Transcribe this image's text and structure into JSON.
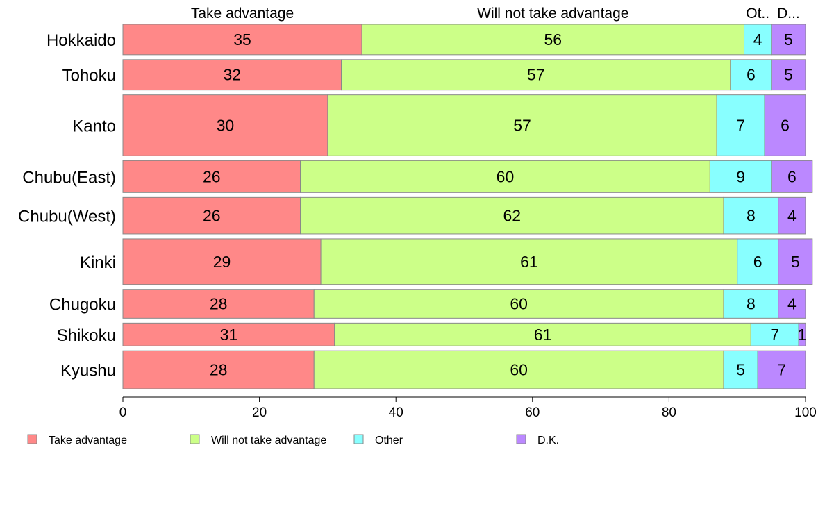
{
  "chart_data": {
    "type": "bar",
    "orientation": "horizontal",
    "stacked": true,
    "categories": [
      "Hokkaido",
      "Tohoku",
      "Kanto",
      "Chubu(East)",
      "Chubu(West)",
      "Kinki",
      "Chugoku",
      "Shikoku",
      "Kyushu"
    ],
    "series": [
      {
        "name": "Take advantage",
        "color": "#ff8888",
        "values": [
          35,
          32,
          30,
          26,
          26,
          29,
          28,
          31,
          28
        ]
      },
      {
        "name": "Will not take advantage",
        "color": "#ccff88",
        "values": [
          56,
          57,
          57,
          60,
          62,
          61,
          60,
          61,
          60
        ]
      },
      {
        "name": "Other",
        "color": "#88ffff",
        "values": [
          4,
          6,
          7,
          9,
          8,
          6,
          8,
          7,
          5
        ]
      },
      {
        "name": "D.K.",
        "color": "#bb88ff",
        "values": [
          5,
          5,
          6,
          6,
          4,
          5,
          4,
          1,
          7
        ]
      }
    ],
    "top_labels": [
      "Take advantage",
      "Will not take advantage",
      "Ot..",
      "D..."
    ],
    "x_ticks": [
      "0",
      "20",
      "40",
      "60",
      "80",
      "100"
    ],
    "xlim": [
      0,
      100
    ],
    "row_weights": [
      1,
      1,
      2,
      1.05,
      1.2,
      1.5,
      0.95,
      0.75,
      1.25
    ],
    "legend": {
      "position": "bottom-left",
      "items": [
        "Take advantage",
        "Will not take advantage",
        "Other",
        "D.K."
      ]
    },
    "grid": false
  }
}
